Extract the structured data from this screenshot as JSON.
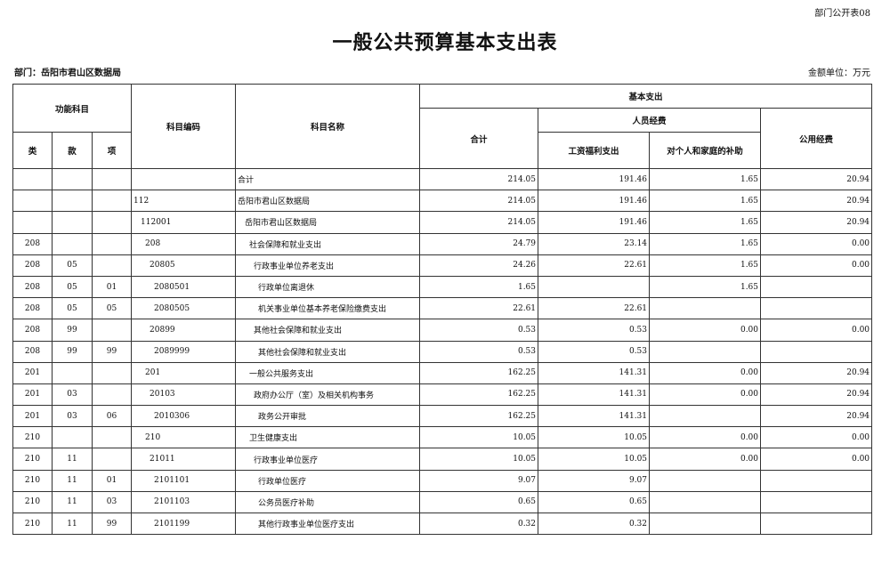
{
  "form_no": "部门公开表08",
  "title": "一般公共预算基本支出表",
  "department": "部门：岳阳市君山区数据局",
  "unit": "金额单位：万元",
  "headers": {
    "functional_subject": "功能科目",
    "lei": "类",
    "kuan": "款",
    "xiang": "项",
    "code": "科目编码",
    "name": "科目名称",
    "basic_expenditure": "基本支出",
    "total": "合计",
    "personnel": "人员经费",
    "wages": "工资福利支出",
    "subsidies": "对个人和家庭的补助",
    "public": "公用经费"
  },
  "rows": [
    {
      "lei": "",
      "kuan": "",
      "xiang": "",
      "code": "",
      "name": "合计",
      "level": 0,
      "total": "214.05",
      "wages": "191.46",
      "subsidies": "1.65",
      "public": "20.94"
    },
    {
      "lei": "",
      "kuan": "",
      "xiang": "",
      "code": "112",
      "name": "岳阳市君山区数据局",
      "level": 0,
      "total": "214.05",
      "wages": "191.46",
      "subsidies": "1.65",
      "public": "20.94"
    },
    {
      "lei": "",
      "kuan": "",
      "xiang": "",
      "code": "112001",
      "name": "岳阳市君山区数据局",
      "level": 1,
      "total": "214.05",
      "wages": "191.46",
      "subsidies": "1.65",
      "public": "20.94"
    },
    {
      "lei": "208",
      "kuan": "",
      "xiang": "",
      "code": "208",
      "name": "社会保障和就业支出",
      "level": 2,
      "total": "24.79",
      "wages": "23.14",
      "subsidies": "1.65",
      "public": "0.00"
    },
    {
      "lei": "208",
      "kuan": "05",
      "xiang": "",
      "code": "20805",
      "name": "行政事业单位养老支出",
      "level": 3,
      "total": "24.26",
      "wages": "22.61",
      "subsidies": "1.65",
      "public": "0.00"
    },
    {
      "lei": "208",
      "kuan": "05",
      "xiang": "01",
      "code": "2080501",
      "name": "行政单位离退休",
      "level": 4,
      "total": "1.65",
      "wages": "",
      "subsidies": "1.65",
      "public": ""
    },
    {
      "lei": "208",
      "kuan": "05",
      "xiang": "05",
      "code": "2080505",
      "name": "机关事业单位基本养老保险缴费支出",
      "level": 4,
      "total": "22.61",
      "wages": "22.61",
      "subsidies": "",
      "public": ""
    },
    {
      "lei": "208",
      "kuan": "99",
      "xiang": "",
      "code": "20899",
      "name": "其他社会保障和就业支出",
      "level": 3,
      "total": "0.53",
      "wages": "0.53",
      "subsidies": "0.00",
      "public": "0.00"
    },
    {
      "lei": "208",
      "kuan": "99",
      "xiang": "99",
      "code": "2089999",
      "name": "其他社会保障和就业支出",
      "level": 4,
      "total": "0.53",
      "wages": "0.53",
      "subsidies": "",
      "public": ""
    },
    {
      "lei": "201",
      "kuan": "",
      "xiang": "",
      "code": "201",
      "name": "一般公共服务支出",
      "level": 2,
      "total": "162.25",
      "wages": "141.31",
      "subsidies": "0.00",
      "public": "20.94"
    },
    {
      "lei": "201",
      "kuan": "03",
      "xiang": "",
      "code": "20103",
      "name": "政府办公厅（室）及相关机构事务",
      "level": 3,
      "total": "162.25",
      "wages": "141.31",
      "subsidies": "0.00",
      "public": "20.94"
    },
    {
      "lei": "201",
      "kuan": "03",
      "xiang": "06",
      "code": "2010306",
      "name": "政务公开审批",
      "level": 4,
      "total": "162.25",
      "wages": "141.31",
      "subsidies": "",
      "public": "20.94"
    },
    {
      "lei": "210",
      "kuan": "",
      "xiang": "",
      "code": "210",
      "name": "卫生健康支出",
      "level": 2,
      "total": "10.05",
      "wages": "10.05",
      "subsidies": "0.00",
      "public": "0.00"
    },
    {
      "lei": "210",
      "kuan": "11",
      "xiang": "",
      "code": "21011",
      "name": "行政事业单位医疗",
      "level": 3,
      "total": "10.05",
      "wages": "10.05",
      "subsidies": "0.00",
      "public": "0.00"
    },
    {
      "lei": "210",
      "kuan": "11",
      "xiang": "01",
      "code": "2101101",
      "name": "行政单位医疗",
      "level": 4,
      "total": "9.07",
      "wages": "9.07",
      "subsidies": "",
      "public": ""
    },
    {
      "lei": "210",
      "kuan": "11",
      "xiang": "03",
      "code": "2101103",
      "name": "公务员医疗补助",
      "level": 4,
      "total": "0.65",
      "wages": "0.65",
      "subsidies": "",
      "public": ""
    },
    {
      "lei": "210",
      "kuan": "11",
      "xiang": "99",
      "code": "2101199",
      "name": "其他行政事业单位医疗支出",
      "level": 4,
      "total": "0.32",
      "wages": "0.32",
      "subsidies": "",
      "public": ""
    }
  ]
}
